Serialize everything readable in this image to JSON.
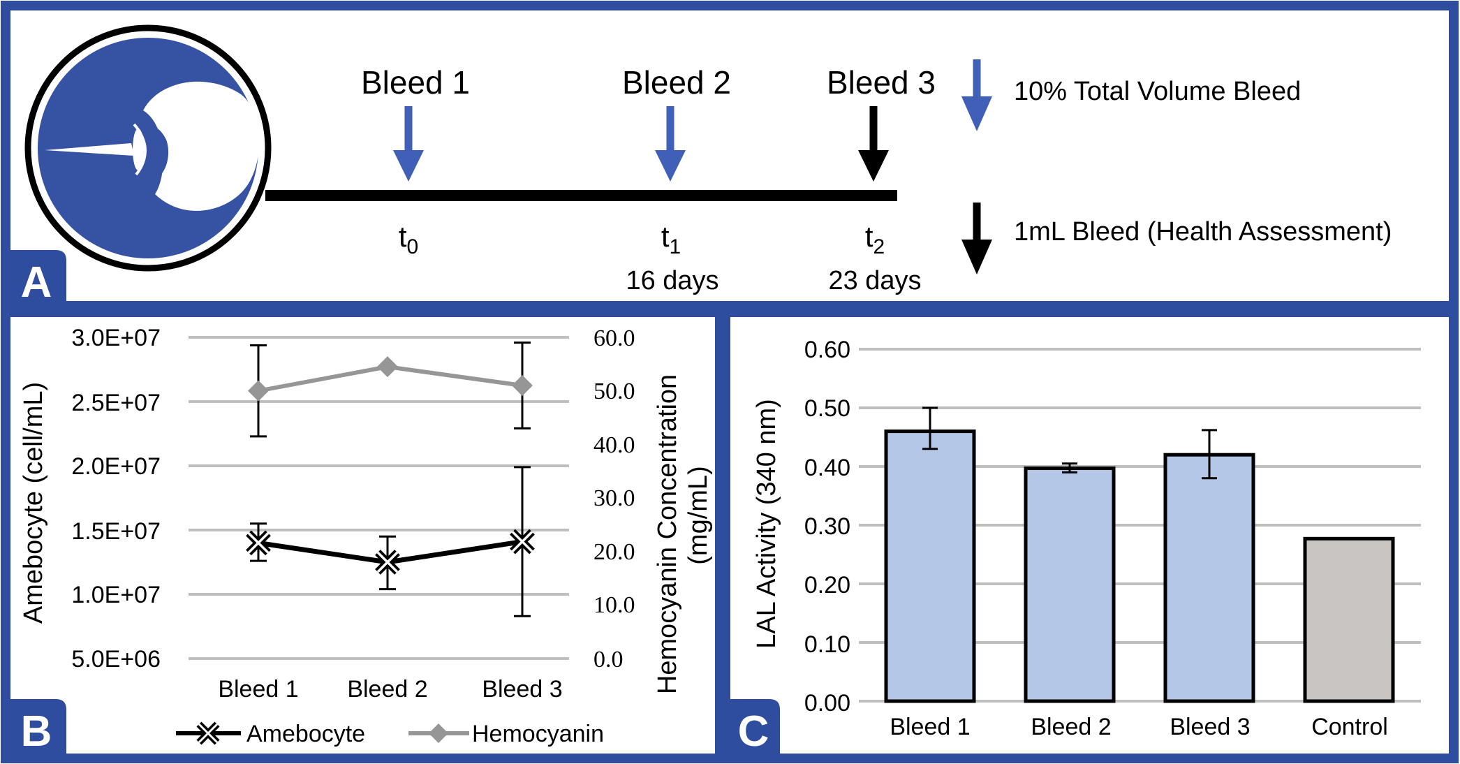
{
  "colors": {
    "frame": "#2e4d9e",
    "logo_blue": "#3652a3",
    "arrow_blue": "#4060b8",
    "arrow_black": "#000000",
    "bar_blue": "#b4c7e7",
    "bar_gray": "#c9c5c3",
    "grid": "#bfbfbf",
    "hemocyanin": "#969696",
    "amebocyte": "#000000"
  },
  "panel_a": {
    "label": "A",
    "bleeds": [
      {
        "label": "Bleed 1",
        "time_base": "t",
        "time_sub": "0",
        "days": "",
        "arrow": "blue"
      },
      {
        "label": "Bleed 2",
        "time_base": "t",
        "time_sub": "1",
        "days": "16 days",
        "arrow": "blue"
      },
      {
        "label": "Bleed 3",
        "time_base": "t",
        "time_sub": "2",
        "days": "23 days",
        "arrow": "black"
      }
    ],
    "legend": [
      {
        "label": "10% Total Volume Bleed",
        "arrow": "blue"
      },
      {
        "label": "1mL Bleed (Health Assessment)",
        "arrow": "black"
      }
    ]
  },
  "panel_b": {
    "label": "B"
  },
  "panel_c": {
    "label": "C"
  },
  "chart_data": [
    {
      "id": "panel_b",
      "type": "line",
      "categories": [
        "Bleed 1",
        "Bleed 2",
        "Bleed 3"
      ],
      "ylabel": "Amebocyte (cell/mL)",
      "y2label_line1": "Hemocyanin Concentration",
      "y2label_line2": "(mg/mL)",
      "ylim": [
        5000000,
        30000000
      ],
      "y_ticks": [
        "3.0E+07",
        "2.5E+07",
        "2.0E+07",
        "1.5E+07",
        "1.0E+07",
        "5.0E+06"
      ],
      "y2lim": [
        0,
        60
      ],
      "y2_ticks": [
        "60.0",
        "50.0",
        "40.0",
        "30.0",
        "20.0",
        "10.0",
        "0.0"
      ],
      "series": [
        {
          "name": "Amebocyte",
          "axis": "left",
          "marker": "x",
          "values": [
            14000000,
            12500000,
            14100000
          ],
          "err_low": [
            12600000,
            10400000,
            8300000
          ],
          "err_high": [
            15500000,
            14500000,
            19900000
          ]
        },
        {
          "name": "Hemocyanin",
          "axis": "right",
          "marker": "diamond",
          "values": [
            50.0,
            54.5,
            51.0
          ],
          "err_low": [
            41.5,
            null,
            43.0
          ],
          "err_high": [
            58.5,
            null,
            59.0
          ]
        }
      ],
      "legend": [
        "Amebocyte",
        "Hemocyanin"
      ]
    },
    {
      "id": "panel_c",
      "type": "bar",
      "categories": [
        "Bleed 1",
        "Bleed 2",
        "Bleed 3",
        "Control"
      ],
      "values": [
        0.46,
        0.397,
        0.42,
        0.277
      ],
      "err_low": [
        0.43,
        0.39,
        0.38,
        null
      ],
      "err_high": [
        0.5,
        0.405,
        0.462,
        null
      ],
      "ylabel": "LAL Activity (340 nm)",
      "ylim": [
        0,
        0.6
      ],
      "y_ticks": [
        "0.60",
        "0.50",
        "0.40",
        "0.30",
        "0.20",
        "0.10",
        "0.00"
      ]
    }
  ]
}
